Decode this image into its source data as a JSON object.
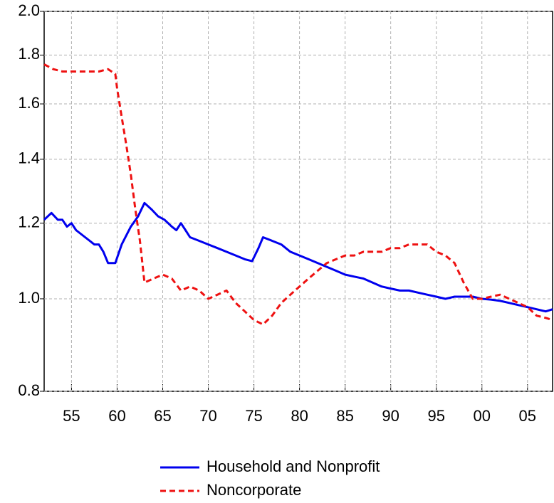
{
  "chart_data": {
    "type": "line",
    "xlim": [
      1952,
      2007.75
    ],
    "xticks": [
      {
        "value": 1955,
        "label": "55"
      },
      {
        "value": 1960,
        "label": "60"
      },
      {
        "value": 1965,
        "label": "65"
      },
      {
        "value": 1970,
        "label": "70"
      },
      {
        "value": 1975,
        "label": "75"
      },
      {
        "value": 1980,
        "label": "80"
      },
      {
        "value": 1985,
        "label": "85"
      },
      {
        "value": 1990,
        "label": "90"
      },
      {
        "value": 1995,
        "label": "95"
      },
      {
        "value": 2000,
        "label": "00"
      },
      {
        "value": 2005,
        "label": "05"
      }
    ],
    "ylim": [
      0.8,
      2.0
    ],
    "yticks": [
      0.8,
      {
        "value": 1,
        "label": "1.0"
      },
      1.2,
      1.4,
      1.6,
      1.8,
      {
        "value": 2,
        "label": "2.0"
      }
    ],
    "log_y": true,
    "grid": true,
    "legend": "bottom",
    "series": [
      {
        "name": "Household and Nonprofit",
        "color": "#0000ee",
        "dash": false,
        "x": [
          1952,
          1952.8,
          1953.5,
          1954,
          1954.5,
          1955,
          1955.5,
          1956,
          1956.5,
          1957,
          1957.5,
          1958,
          1958.5,
          1959,
          1959.8,
          1960.5,
          1961.5,
          1962.3,
          1963,
          1963.8,
          1964.5,
          1965.2,
          1966,
          1966.5,
          1967,
          1967.5,
          1968,
          1969,
          1970,
          1971,
          1972,
          1973,
          1974,
          1974.8,
          1975.5,
          1976,
          1977,
          1978,
          1979,
          1980,
          1981,
          1982,
          1983,
          1984,
          1985,
          1986,
          1987,
          1988,
          1989,
          1990,
          1991,
          1992,
          1993,
          1994,
          1995,
          1996,
          1997,
          1998,
          1999,
          2000,
          2001,
          2002,
          2003,
          2004,
          2005,
          2006,
          2007,
          2007.75
        ],
        "values": [
          1.21,
          1.23,
          1.21,
          1.21,
          1.19,
          1.2,
          1.18,
          1.17,
          1.16,
          1.15,
          1.14,
          1.14,
          1.12,
          1.09,
          1.09,
          1.14,
          1.19,
          1.22,
          1.26,
          1.24,
          1.22,
          1.21,
          1.19,
          1.18,
          1.2,
          1.18,
          1.16,
          1.15,
          1.14,
          1.13,
          1.12,
          1.11,
          1.1,
          1.095,
          1.13,
          1.16,
          1.15,
          1.14,
          1.12,
          1.11,
          1.1,
          1.09,
          1.08,
          1.07,
          1.06,
          1.055,
          1.05,
          1.04,
          1.03,
          1.025,
          1.02,
          1.02,
          1.015,
          1.01,
          1.005,
          1.0,
          1.005,
          1.005,
          1.005,
          1.0,
          0.998,
          0.995,
          0.99,
          0.985,
          0.98,
          0.975,
          0.97,
          0.975
        ]
      },
      {
        "name": "Noncorporate",
        "color": "#ee1111",
        "dash": true,
        "x": [
          1952,
          1953,
          1954,
          1955,
          1956,
          1957,
          1958,
          1959,
          1959.8,
          1960,
          1960.5,
          1961,
          1961.5,
          1962,
          1962.5,
          1963,
          1964,
          1965,
          1966,
          1967,
          1968,
          1969,
          1970,
          1971,
          1972,
          1973,
          1974,
          1975,
          1976,
          1977,
          1978,
          1979,
          1980,
          1981,
          1982,
          1983,
          1984,
          1985,
          1986,
          1987,
          1988,
          1989,
          1990,
          1991,
          1992,
          1993,
          1994,
          1995,
          1996,
          1997,
          1998,
          1999,
          2000,
          2001,
          2002,
          2003,
          2004,
          2005,
          2006,
          2007,
          2007.75
        ],
        "values": [
          1.76,
          1.74,
          1.73,
          1.73,
          1.73,
          1.73,
          1.73,
          1.74,
          1.72,
          1.66,
          1.55,
          1.45,
          1.35,
          1.24,
          1.15,
          1.04,
          1.05,
          1.06,
          1.05,
          1.02,
          1.03,
          1.02,
          1.0,
          1.01,
          1.02,
          0.99,
          0.97,
          0.95,
          0.94,
          0.96,
          0.99,
          1.01,
          1.03,
          1.05,
          1.07,
          1.09,
          1.1,
          1.11,
          1.11,
          1.12,
          1.12,
          1.12,
          1.13,
          1.13,
          1.14,
          1.14,
          1.14,
          1.12,
          1.11,
          1.09,
          1.04,
          1.0,
          1.0,
          1.005,
          1.01,
          1.0,
          0.99,
          0.98,
          0.96,
          0.955,
          0.95
        ]
      }
    ]
  }
}
